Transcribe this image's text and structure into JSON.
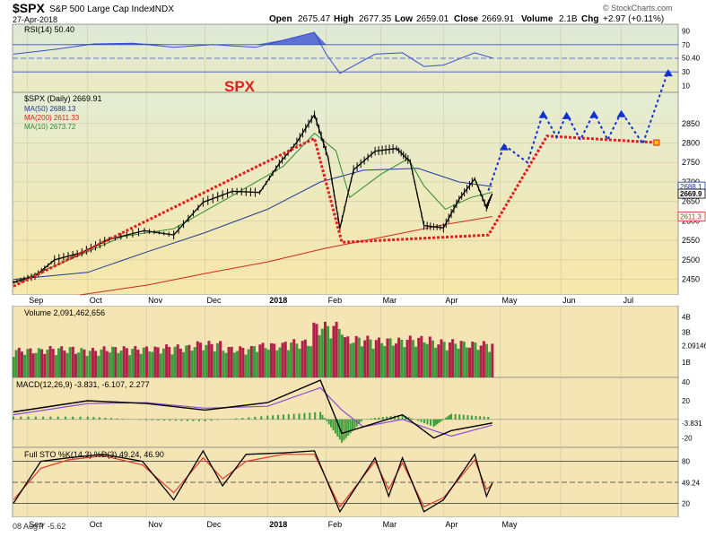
{
  "header": {
    "symbol": "$SPX",
    "name": "S&P 500 Large Cap Index",
    "exchange": "INDX",
    "date": "27-Apr-2018",
    "open_label": "Open",
    "open": "2675.47",
    "high_label": "High",
    "high": "2677.35",
    "low_label": "Low",
    "low": "2659.01",
    "close_label": "Close",
    "close": "2669.91",
    "volume_label": "Volume",
    "volume": "2.1B",
    "chg_label": "Chg",
    "chg": "+2.97 (+0.11%)",
    "watermark": "© StockCharts.com",
    "annotation": "SPX"
  },
  "colors": {
    "price_bg_top": "#e4ecd4",
    "price_bg_bottom": "#f7e7a9",
    "panel_bg": "#f5e4b4",
    "candle": "#000000",
    "ma50": "#1f3a93",
    "ma200": "#cc2a1a",
    "ma10": "#2e8b2e",
    "rsi": "#3b4fcf",
    "rsi_fill": "#2a3fd0",
    "vol_up": "#3d9a3d",
    "vol_down": "#b02048",
    "macd": "#000000",
    "signal": "#8a4fd6",
    "hist": "#3aa03a",
    "sto_k": "#000000",
    "sto_d": "#e03a2a",
    "proj_red": "#e02020",
    "proj_blue": "#1030d0"
  },
  "chart_data": [
    {
      "type": "line",
      "panel": "RSI",
      "label": "RSI(14) 50.40",
      "ylim": [
        0,
        100
      ],
      "y_ticks": [
        "90",
        "70",
        "50.40",
        "30",
        "10"
      ],
      "reference_lines": [
        70,
        50,
        30
      ],
      "x": [
        "2017-08-25",
        "2017-09-15",
        "2017-10-05",
        "2017-10-25",
        "2017-11-15",
        "2017-12-05",
        "2017-12-27",
        "2018-01-12",
        "2018-01-26",
        "2018-02-01",
        "2018-02-08",
        "2018-02-26",
        "2018-03-12",
        "2018-03-23",
        "2018-04-02",
        "2018-04-18",
        "2018-04-27"
      ],
      "values": [
        56,
        63,
        71,
        72,
        66,
        70,
        66,
        78,
        88,
        56,
        28,
        56,
        58,
        38,
        40,
        58,
        50.4
      ]
    },
    {
      "type": "candlestick",
      "panel": "price",
      "label": "$SPX (Daily) 2669.91",
      "title": "SPX",
      "ylim": [
        2410,
        2930
      ],
      "y_ticks": [
        "2850",
        "2800",
        "2750",
        "2700",
        "2650",
        "2600",
        "2550",
        "2500",
        "2450"
      ],
      "y_tags": [
        "2688.1",
        "2669.9",
        "2611.3"
      ],
      "x_ticks": [
        "Sep",
        "Oct",
        "Nov",
        "Dec",
        "2018",
        "Feb",
        "Mar",
        "Apr",
        "May",
        "Jun",
        "Jul"
      ],
      "series": [
        {
          "name": "MA(50) 2688.13",
          "x": [
            "2017-08-25",
            "2017-10-02",
            "2017-11-01",
            "2017-12-01",
            "2018-01-02",
            "2018-01-29",
            "2018-02-20",
            "2018-03-20",
            "2018-04-10",
            "2018-04-27"
          ],
          "values": [
            2450,
            2468,
            2520,
            2570,
            2630,
            2700,
            2730,
            2735,
            2700,
            2688.13
          ]
        },
        {
          "name": "MA(200) 2611.33",
          "x": [
            "2017-09-28",
            "2017-11-01",
            "2017-12-01",
            "2018-01-02",
            "2018-02-01",
            "2018-03-01",
            "2018-04-02",
            "2018-04-27"
          ],
          "values": [
            2410,
            2435,
            2465,
            2495,
            2530,
            2558,
            2590,
            2611.33
          ]
        },
        {
          "name": "MA(10) 2673.72",
          "x": [
            "2017-08-25",
            "2017-09-20",
            "2017-10-20",
            "2017-11-15",
            "2017-12-15",
            "2018-01-10",
            "2018-01-26",
            "2018-02-06",
            "2018-02-13",
            "2018-03-01",
            "2018-03-15",
            "2018-03-23",
            "2018-04-03",
            "2018-04-16",
            "2018-04-27"
          ],
          "values": [
            2440,
            2495,
            2560,
            2580,
            2665,
            2740,
            2825,
            2780,
            2660,
            2720,
            2760,
            2690,
            2630,
            2660,
            2673.72
          ]
        },
        {
          "name": "Close",
          "x": [
            "2017-08-25",
            "2017-09-05",
            "2017-09-15",
            "2017-09-29",
            "2017-10-13",
            "2017-10-31",
            "2017-11-15",
            "2017-11-30",
            "2017-12-15",
            "2017-12-29",
            "2018-01-08",
            "2018-01-17",
            "2018-01-26",
            "2018-02-02",
            "2018-02-08",
            "2018-02-15",
            "2018-02-26",
            "2018-03-09",
            "2018-03-16",
            "2018-03-23",
            "2018-04-02",
            "2018-04-10",
            "2018-04-18",
            "2018-04-24",
            "2018-04-27"
          ],
          "values": [
            2443,
            2458,
            2500,
            2519,
            2553,
            2575,
            2564,
            2648,
            2676,
            2673,
            2747,
            2802,
            2873,
            2762,
            2581,
            2731,
            2779,
            2786,
            2752,
            2588,
            2582,
            2656,
            2708,
            2634,
            2669.91
          ]
        }
      ]
    },
    {
      "type": "line",
      "panel": "projection",
      "note": "hand-drawn projection lines on price panel",
      "series": [
        {
          "name": "",
          "color": "red",
          "x": [
            "2017-08-25",
            "2018-01-26",
            "2018-02-09",
            "2018-04-25",
            "2018-05-25",
            "2018-07-20"
          ],
          "values": [
            2432,
            2812,
            2545,
            2564,
            2818,
            2801
          ]
        },
        {
          "name": "",
          "color": "blue",
          "x": [
            "2018-04-25",
            "2018-05-03",
            "2018-05-15",
            "2018-05-23",
            "2018-05-30",
            "2018-06-04",
            "2018-06-11",
            "2018-06-18",
            "2018-06-25",
            "2018-07-02",
            "2018-07-13",
            "2018-07-26"
          ],
          "values": [
            2678,
            2795,
            2750,
            2878,
            2815,
            2875,
            2808,
            2878,
            2808,
            2880,
            2798,
            2985
          ]
        }
      ]
    },
    {
      "type": "bar",
      "panel": "Volume",
      "label": "Volume 2,091,462,656",
      "y_ticks": [
        "4B",
        "3B",
        "2.09146",
        "1B"
      ],
      "ylim": [
        0,
        4.5
      ],
      "x": [
        "Sep",
        "Sep",
        "Oct",
        "Oct",
        "Nov",
        "Nov",
        "Dec",
        "Dec",
        "Jan",
        "Jan",
        "Feb",
        "Feb",
        "Mar",
        "Mar",
        "Apr",
        "Apr"
      ],
      "values": [
        1.7,
        1.8,
        1.7,
        1.8,
        1.8,
        1.9,
        2.1,
        1.8,
        2.0,
        2.2,
        3.2,
        2.4,
        2.3,
        2.4,
        2.2,
        2.09
      ]
    },
    {
      "type": "line",
      "panel": "MACD",
      "label": "MACD(12,26,9) -3.831, -6.107, 2.277",
      "y_ticks": [
        "40",
        "20",
        "-3.831",
        "-20"
      ],
      "ylim": [
        -30,
        45
      ],
      "series": [
        {
          "name": "MACD",
          "x": [
            "2017-08-25",
            "2017-10-02",
            "2017-11-01",
            "2017-12-01",
            "2018-01-02",
            "2018-01-29",
            "2018-02-09",
            "2018-02-20",
            "2018-03-12",
            "2018-03-28",
            "2018-04-06",
            "2018-04-27"
          ],
          "values": [
            8,
            20,
            17,
            10,
            18,
            42,
            -15,
            -8,
            5,
            -20,
            -12,
            -3.831
          ]
        },
        {
          "name": "Signal",
          "x": [
            "2017-08-25",
            "2017-10-02",
            "2017-11-01",
            "2017-12-01",
            "2018-01-02",
            "2018-01-29",
            "2018-02-09",
            "2018-02-20",
            "2018-03-12",
            "2018-03-28",
            "2018-04-06",
            "2018-04-27"
          ],
          "values": [
            5,
            17,
            18,
            12,
            14,
            34,
            10,
            -8,
            0,
            -12,
            -18,
            -6.107
          ]
        }
      ]
    },
    {
      "type": "line",
      "panel": "Full STO",
      "label": "Full STO %K(14,3) %D(3) 49.24, 46.90",
      "y_ticks": [
        "80",
        "49.24",
        "20"
      ],
      "ylim": [
        0,
        100
      ],
      "reference_lines": [
        80,
        50,
        20
      ],
      "series": [
        {
          "name": "%K",
          "x": [
            "2017-08-25",
            "2017-09-08",
            "2017-09-22",
            "2017-10-10",
            "2017-10-30",
            "2017-11-15",
            "2017-11-30",
            "2017-12-10",
            "2017-12-22",
            "2018-01-10",
            "2018-01-26",
            "2018-02-08",
            "2018-02-26",
            "2018-03-05",
            "2018-03-12",
            "2018-03-23",
            "2018-04-02",
            "2018-04-18",
            "2018-04-24",
            "2018-04-27"
          ],
          "values": [
            20,
            80,
            85,
            90,
            80,
            25,
            95,
            45,
            90,
            92,
            95,
            8,
            85,
            30,
            85,
            8,
            25,
            90,
            30,
            49.24
          ]
        },
        {
          "name": "%D",
          "x": [
            "2017-08-25",
            "2017-09-08",
            "2017-09-22",
            "2017-10-10",
            "2017-10-30",
            "2017-11-15",
            "2017-11-30",
            "2017-12-10",
            "2017-12-22",
            "2018-01-10",
            "2018-01-26",
            "2018-02-08",
            "2018-02-26",
            "2018-03-05",
            "2018-03-12",
            "2018-03-23",
            "2018-04-02",
            "2018-04-18",
            "2018-04-24",
            "2018-04-27"
          ],
          "values": [
            25,
            70,
            82,
            88,
            75,
            35,
            85,
            55,
            80,
            90,
            90,
            15,
            80,
            40,
            78,
            15,
            28,
            82,
            40,
            46.9
          ]
        }
      ]
    }
  ],
  "footer": {
    "dates": "08 Aug Y -5.62"
  }
}
